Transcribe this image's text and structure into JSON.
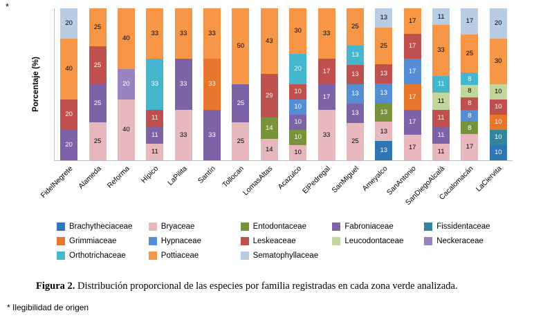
{
  "page": {
    "top_asterisk": "*",
    "caption_bold": "Figura 2.",
    "caption_rest": " Distribución proporcional de las especies por familia registradas en cada zona verde analizada.",
    "footnote": "* Ilegibilidad de origen"
  },
  "chart_data": {
    "type": "bar",
    "stacked": true,
    "stack_mode": "percent",
    "title": "",
    "xlabel": "",
    "ylabel": "Porcentaje (%)",
    "ylim": [
      0,
      100
    ],
    "grid": false,
    "legend_position": "bottom",
    "categories": [
      "FidelNegrete",
      "Alameda",
      "Reforma",
      "Hípico",
      "LaPilita",
      "Santín",
      "Tollocan",
      "LomasAltas",
      "Acazulco",
      "ElPedregal",
      "SanMiguel",
      "Ameyalco",
      "SanAntonio",
      "SanDiegoAlcalá",
      "Cacalomacán",
      "LaCiervita"
    ],
    "families": [
      {
        "name": "Brachytheciaceae",
        "color": "#2E75B6",
        "label_color": "#FFFFFF"
      },
      {
        "name": "Bryaceae",
        "color": "#E9B8BD",
        "label_color": "#000000"
      },
      {
        "name": "Entodontaceae",
        "color": "#77933C",
        "label_color": "#FFFFFF"
      },
      {
        "name": "Fabroniaceae",
        "color": "#7D62A8",
        "label_color": "#FFFFFF"
      },
      {
        "name": "Fissidentaceae",
        "color": "#31859C",
        "label_color": "#FFFFFF"
      },
      {
        "name": "Grimmiaceae",
        "color": "#E8762C",
        "label_color": "#FFFFFF"
      },
      {
        "name": "Hypnaceae",
        "color": "#558ED5",
        "label_color": "#FFFFFF"
      },
      {
        "name": "Leskeaceae",
        "color": "#C0504D",
        "label_color": "#FFFFFF"
      },
      {
        "name": "Leucodontaceae",
        "color": "#C3D69B",
        "label_color": "#000000"
      },
      {
        "name": "Neckeraceae",
        "color": "#9883BF",
        "label_color": "#FFFFFF"
      },
      {
        "name": "Orthotrichaceae",
        "color": "#45B6CE",
        "label_color": "#FFFFFF"
      },
      {
        "name": "Pottiaceae",
        "color": "#F79646",
        "label_color": "#000000"
      },
      {
        "name": "Sematophyllaceae",
        "color": "#B8CCE4",
        "label_color": "#000000"
      }
    ],
    "bars": [
      {
        "category": "FidelNegrete",
        "segments": [
          {
            "family": "Fabroniaceae",
            "value": 20
          },
          {
            "family": "Leskeaceae",
            "value": 20
          },
          {
            "family": "Pottiaceae",
            "value": 40
          },
          {
            "family": "Sematophyllaceae",
            "value": 20
          }
        ]
      },
      {
        "category": "Alameda",
        "segments": [
          {
            "family": "Bryaceae",
            "value": 25
          },
          {
            "family": "Fabroniaceae",
            "value": 25
          },
          {
            "family": "Leskeaceae",
            "value": 25
          },
          {
            "family": "Pottiaceae",
            "value": 25
          }
        ]
      },
      {
        "category": "Reforma",
        "segments": [
          {
            "family": "Bryaceae",
            "value": 40
          },
          {
            "family": "Neckeraceae",
            "value": 20
          },
          {
            "family": "Pottiaceae",
            "value": 40
          }
        ]
      },
      {
        "category": "Hípico",
        "segments": [
          {
            "family": "Bryaceae",
            "value": 11
          },
          {
            "family": "Fabroniaceae",
            "value": 11
          },
          {
            "family": "Leskeaceae",
            "value": 11
          },
          {
            "family": "Orthotrichaceae",
            "value": 33
          },
          {
            "family": "Pottiaceae",
            "value": 33
          }
        ]
      },
      {
        "category": "LaPilita",
        "segments": [
          {
            "family": "Bryaceae",
            "value": 33
          },
          {
            "family": "Fabroniaceae",
            "value": 33
          },
          {
            "family": "Pottiaceae",
            "value": 33
          }
        ]
      },
      {
        "category": "Santín",
        "segments": [
          {
            "family": "Fabroniaceae",
            "value": 33
          },
          {
            "family": "Grimmiaceae",
            "value": 33
          },
          {
            "family": "Pottiaceae",
            "value": 33
          }
        ]
      },
      {
        "category": "Tollocan",
        "segments": [
          {
            "family": "Bryaceae",
            "value": 25
          },
          {
            "family": "Fabroniaceae",
            "value": 25
          },
          {
            "family": "Pottiaceae",
            "value": 50
          }
        ]
      },
      {
        "category": "LomasAltas",
        "segments": [
          {
            "family": "Bryaceae",
            "value": 14
          },
          {
            "family": "Entodontaceae",
            "value": 14
          },
          {
            "family": "Leskeaceae",
            "value": 29
          },
          {
            "family": "Pottiaceae",
            "value": 43
          }
        ]
      },
      {
        "category": "Acazulco",
        "segments": [
          {
            "family": "Bryaceae",
            "value": 10
          },
          {
            "family": "Entodontaceae",
            "value": 10
          },
          {
            "family": "Fabroniaceae",
            "value": 10
          },
          {
            "family": "Hypnaceae",
            "value": 10
          },
          {
            "family": "Leskeaceae",
            "value": 10
          },
          {
            "family": "Orthotrichaceae",
            "value": 20
          },
          {
            "family": "Pottiaceae",
            "value": 30
          }
        ]
      },
      {
        "category": "ElPedregal",
        "segments": [
          {
            "family": "Bryaceae",
            "value": 33
          },
          {
            "family": "Fabroniaceae",
            "value": 17
          },
          {
            "family": "Leskeaceae",
            "value": 17
          },
          {
            "family": "Pottiaceae",
            "value": 33
          }
        ]
      },
      {
        "category": "SanMiguel",
        "segments": [
          {
            "family": "Bryaceae",
            "value": 25
          },
          {
            "family": "Fabroniaceae",
            "value": 13
          },
          {
            "family": "Hypnaceae",
            "value": 13
          },
          {
            "family": "Leskeaceae",
            "value": 13
          },
          {
            "family": "Orthotrichaceae",
            "value": 13
          },
          {
            "family": "Pottiaceae",
            "value": 25
          }
        ]
      },
      {
        "category": "Ameyalco",
        "segments": [
          {
            "family": "Brachytheciaceae",
            "value": 13
          },
          {
            "family": "Bryaceae",
            "value": 13
          },
          {
            "family": "Entodontaceae",
            "value": 13
          },
          {
            "family": "Hypnaceae",
            "value": 13
          },
          {
            "family": "Leskeaceae",
            "value": 13
          },
          {
            "family": "Pottiaceae",
            "value": 25
          },
          {
            "family": "Sematophyllaceae",
            "value": 13
          }
        ]
      },
      {
        "category": "SanAntonio",
        "segments": [
          {
            "family": "Bryaceae",
            "value": 17
          },
          {
            "family": "Fabroniaceae",
            "value": 17
          },
          {
            "family": "Grimmiaceae",
            "value": 17
          },
          {
            "family": "Hypnaceae",
            "value": 17
          },
          {
            "family": "Leskeaceae",
            "value": 17
          },
          {
            "family": "Pottiaceae",
            "value": 17
          }
        ]
      },
      {
        "category": "SanDiegoAlcalá",
        "segments": [
          {
            "family": "Bryaceae",
            "value": 11
          },
          {
            "family": "Fabroniaceae",
            "value": 11
          },
          {
            "family": "Leskeaceae",
            "value": 11
          },
          {
            "family": "Leucodontaceae",
            "value": 11
          },
          {
            "family": "Orthotrichaceae",
            "value": 11
          },
          {
            "family": "Pottiaceae",
            "value": 33
          },
          {
            "family": "Sematophyllaceae",
            "value": 11
          }
        ]
      },
      {
        "category": "Cacalomacán",
        "segments": [
          {
            "family": "Bryaceae",
            "value": 17
          },
          {
            "family": "Entodontaceae",
            "value": 8
          },
          {
            "family": "Hypnaceae",
            "value": 8
          },
          {
            "family": "Leskeaceae",
            "value": 8
          },
          {
            "family": "Leucodontaceae",
            "value": 8
          },
          {
            "family": "Orthotrichaceae",
            "value": 8
          },
          {
            "family": "Pottiaceae",
            "value": 25
          },
          {
            "family": "Sematophyllaceae",
            "value": 17
          }
        ]
      },
      {
        "category": "LaCiervita",
        "segments": [
          {
            "family": "Brachytheciaceae",
            "value": 10
          },
          {
            "family": "Fissidentaceae",
            "value": 10
          },
          {
            "family": "Grimmiaceae",
            "value": 10
          },
          {
            "family": "Leskeaceae",
            "value": 10
          },
          {
            "family": "Leucodontaceae",
            "value": 10
          },
          {
            "family": "Pottiaceae",
            "value": 30
          },
          {
            "family": "Sematophyllaceae",
            "value": 20
          }
        ]
      }
    ]
  }
}
